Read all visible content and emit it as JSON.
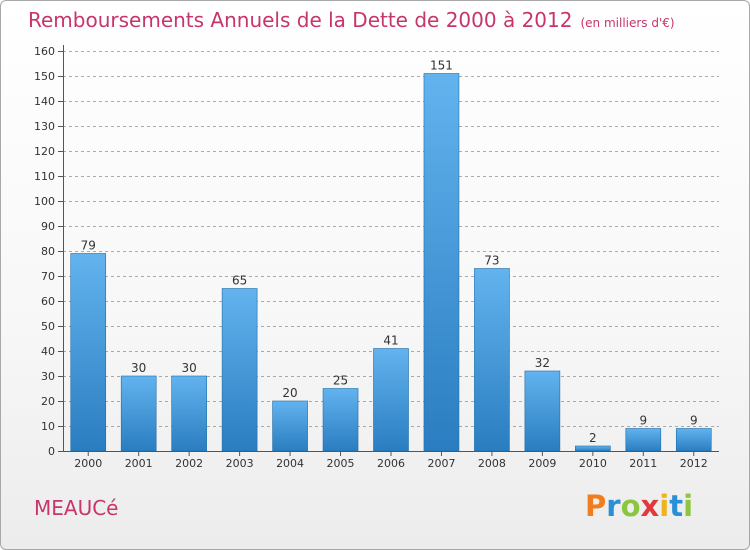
{
  "header": {
    "title": "Remboursements Annuels de la Dette de 2000 à 2012",
    "unit": "(en milliers d'€)"
  },
  "footer": {
    "commune": "MEAUCé",
    "brand_letters": [
      {
        "ch": "P",
        "color": "#f07d1e"
      },
      {
        "ch": "r",
        "color": "#2a8fd6"
      },
      {
        "ch": "o",
        "color": "#8cc63f"
      },
      {
        "ch": "x",
        "color": "#e03a3e"
      },
      {
        "ch": "i",
        "color": "#f0b31e"
      },
      {
        "ch": "t",
        "color": "#2a8fd6"
      },
      {
        "ch": "i",
        "color": "#8cc63f"
      }
    ]
  },
  "colors": {
    "bar_top": "#62b3ee",
    "bar_bottom": "#2a7dc0",
    "grid": "#8a8a8a",
    "text": "#333333",
    "accent": "#c8346c"
  },
  "chart_data": {
    "type": "bar",
    "categories": [
      "2000",
      "2001",
      "2002",
      "2003",
      "2004",
      "2005",
      "2006",
      "2007",
      "2008",
      "2009",
      "2010",
      "2011",
      "2012"
    ],
    "values": [
      79,
      30,
      30,
      65,
      20,
      25,
      41,
      151,
      73,
      32,
      2,
      9,
      9
    ],
    "yticks": [
      0,
      10,
      20,
      30,
      40,
      50,
      60,
      70,
      80,
      90,
      100,
      110,
      120,
      130,
      140,
      150,
      160
    ],
    "ylim": [
      0,
      160
    ],
    "grid": "horizontal dashed",
    "legend": "none"
  }
}
